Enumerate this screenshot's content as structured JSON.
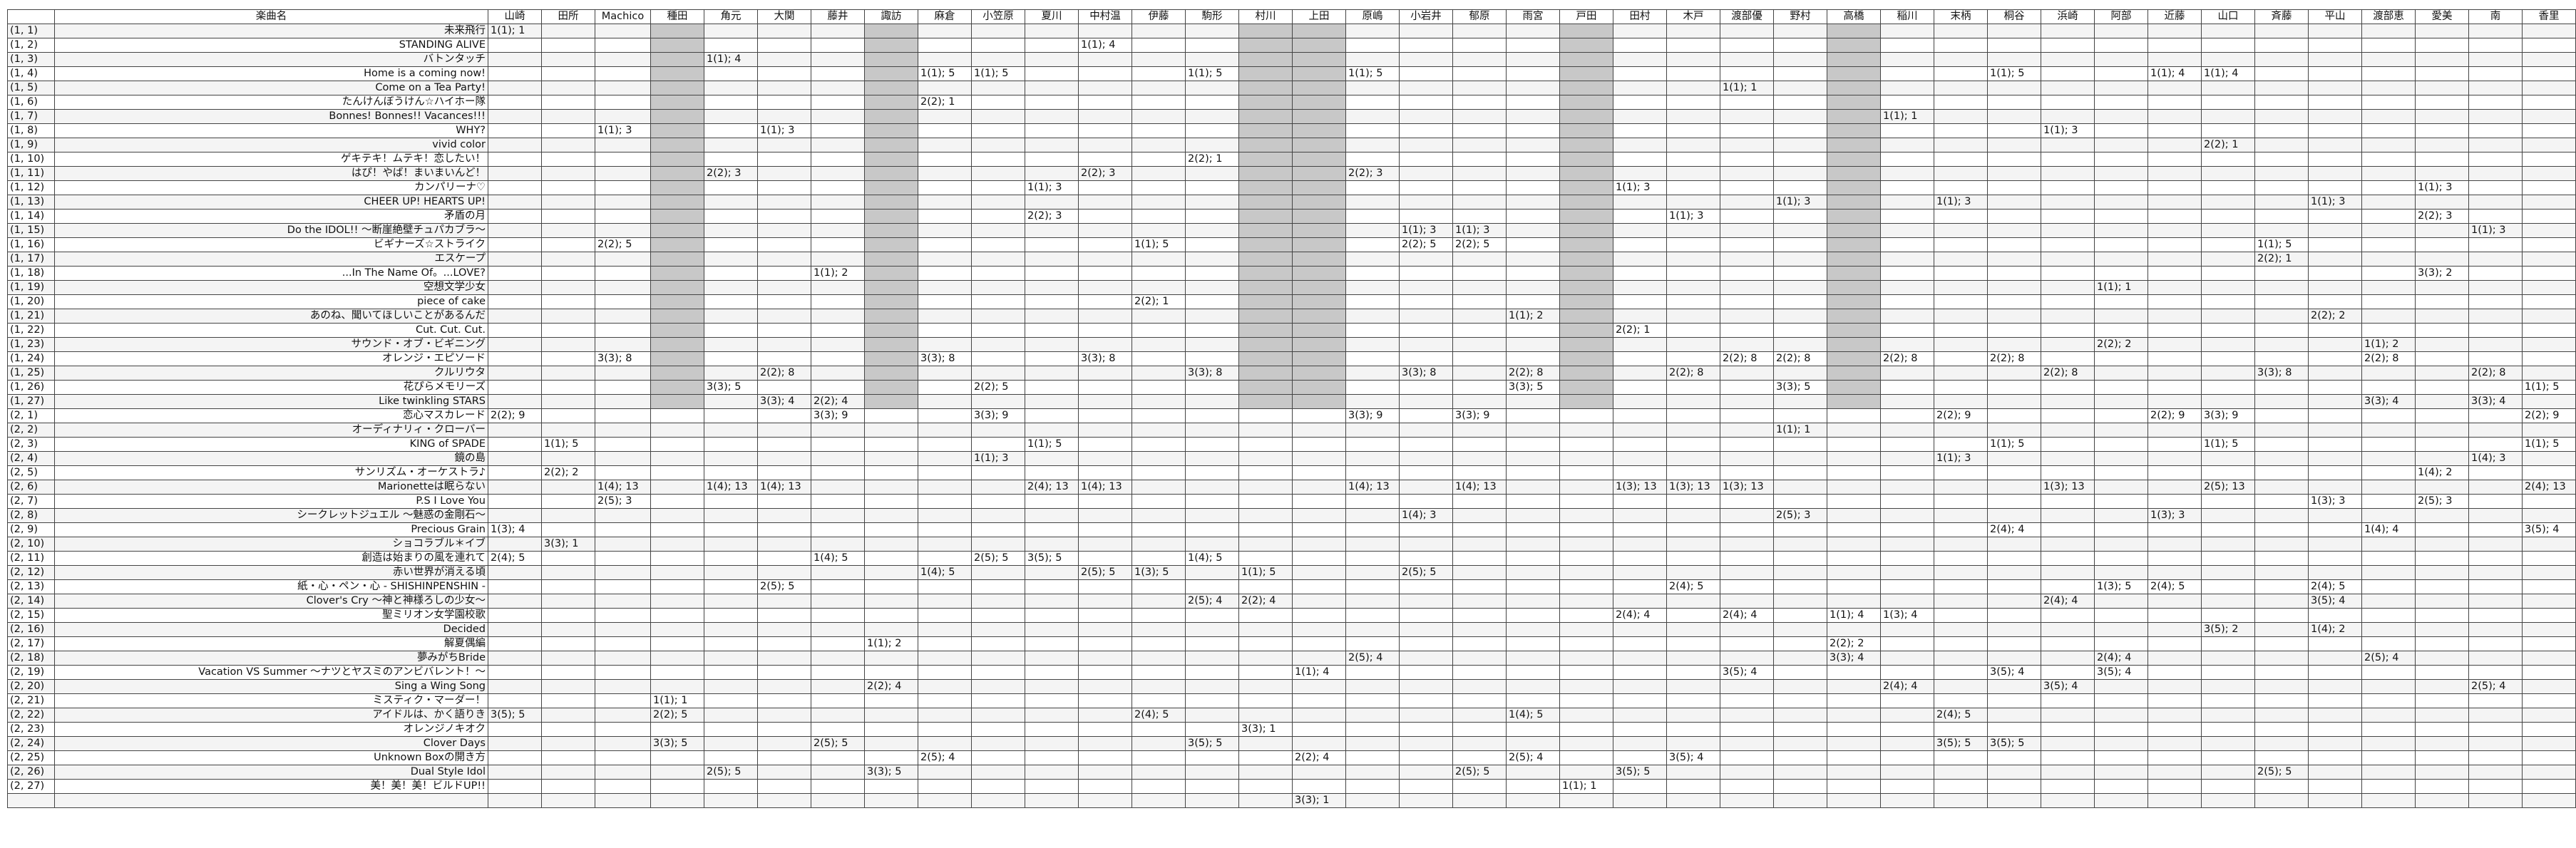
{
  "header": {
    "title_col": "楽曲名",
    "performers": [
      "山崎",
      "田所",
      "Machico",
      "種田",
      "角元",
      "大関",
      "藤井",
      "諏訪",
      "麻倉",
      "小笠原",
      "夏川",
      "中村温",
      "伊藤",
      "駒形",
      "村川",
      "上田",
      "原嶋",
      "小岩井",
      "郁原",
      "雨宮",
      "戸田",
      "田村",
      "木戸",
      "渡部優",
      "野村",
      "高橋",
      "稲川",
      "末柄",
      "桐谷",
      "浜崎",
      "阿部",
      "近藤",
      "山口",
      "斉藤",
      "平山",
      "渡部恵",
      "愛美",
      "南",
      "香里"
    ]
  },
  "shaded_columns": [
    3,
    7,
    14,
    15,
    20,
    25
  ],
  "rows": [
    {
      "key": "(1, 1)",
      "title": "未来飛行",
      "cells": {
        "0": "1(1); 1"
      }
    },
    {
      "key": "(1, 2)",
      "title": "STANDING ALIVE",
      "cells": {
        "11": "1(1); 4"
      }
    },
    {
      "key": "(1, 3)",
      "title": "バトンタッチ",
      "cells": {
        "4": "1(1); 4"
      }
    },
    {
      "key": "(1, 4)",
      "title": "Home is a coming now!",
      "cells": {
        "8": "1(1); 5",
        "9": "1(1); 5",
        "13": "1(1); 5",
        "16": "1(1); 5",
        "28": "1(1); 5",
        "31": "1(1); 4",
        "32": "1(1); 4"
      }
    },
    {
      "key": "(1, 5)",
      "title": "Come on a Tea Party!",
      "cells": {
        "23": "1(1); 1"
      }
    },
    {
      "key": "(1, 6)",
      "title": "たんけんぼうけん☆ハイホー隊",
      "cells": {
        "8": "2(2); 1"
      }
    },
    {
      "key": "(1, 7)",
      "title": "Bonnes! Bonnes!! Vacances!!!",
      "cells": {
        "26": "1(1); 1"
      }
    },
    {
      "key": "(1, 8)",
      "title": "WHY?",
      "cells": {
        "2": "1(1); 3",
        "5": "1(1); 3",
        "29": "1(1); 3"
      }
    },
    {
      "key": "(1, 9)",
      "title": "vivid color",
      "cells": {
        "32": "2(2); 1"
      }
    },
    {
      "key": "(1, 10)",
      "title": "ゲキテキ！ムテキ！恋したい！",
      "cells": {
        "13": "2(2); 1"
      }
    },
    {
      "key": "(1, 11)",
      "title": "はぴ！やば！まいまいんど！",
      "cells": {
        "4": "2(2); 3",
        "11": "2(2); 3",
        "16": "2(2); 3"
      }
    },
    {
      "key": "(1, 12)",
      "title": "カンパリーナ♡",
      "cells": {
        "10": "1(1); 3",
        "21": "1(1); 3",
        "36": "1(1); 3"
      }
    },
    {
      "key": "(1, 13)",
      "title": "CHEER UP! HEARTS UP!",
      "cells": {
        "24": "1(1); 3",
        "27": "1(1); 3",
        "34": "1(1); 3"
      }
    },
    {
      "key": "(1, 14)",
      "title": "矛盾の月",
      "cells": {
        "10": "2(2); 3",
        "22": "1(1); 3",
        "36": "2(2); 3"
      }
    },
    {
      "key": "(1, 15)",
      "title": "Do the IDOL!! ～断崖絶壁チュパカブラ～",
      "cells": {
        "17": "1(1); 3",
        "18": "1(1); 3",
        "37": "1(1); 3"
      }
    },
    {
      "key": "(1, 16)",
      "title": "ビギナーズ☆ストライク",
      "cells": {
        "2": "2(2); 5",
        "12": "1(1); 5",
        "17": "2(2); 5",
        "18": "2(2); 5",
        "33": "1(1); 5"
      }
    },
    {
      "key": "(1, 17)",
      "title": "エスケープ",
      "cells": {
        "33": "2(2); 1"
      }
    },
    {
      "key": "(1, 18)",
      "title": "...In The Name Of。...LOVE?",
      "cells": {
        "6": "1(1); 2",
        "36": "3(3); 2"
      }
    },
    {
      "key": "(1, 19)",
      "title": "空想文学少女",
      "cells": {
        "30": "1(1); 1"
      }
    },
    {
      "key": "(1, 20)",
      "title": "piece of cake",
      "cells": {
        "12": "2(2); 1"
      }
    },
    {
      "key": "(1, 21)",
      "title": "あのね、聞いてほしいことがあるんだ",
      "cells": {
        "19": "1(1); 2",
        "34": "2(2); 2"
      }
    },
    {
      "key": "(1, 22)",
      "title": "Cut. Cut. Cut.",
      "cells": {
        "21": "2(2); 1"
      }
    },
    {
      "key": "(1, 23)",
      "title": "サウンド・オブ・ビギニング",
      "cells": {
        "30": "2(2); 2",
        "35": "1(1); 2"
      }
    },
    {
      "key": "(1, 24)",
      "title": "オレンジ・エピソード",
      "cells": {
        "2": "3(3); 8",
        "8": "3(3); 8",
        "11": "3(3); 8",
        "23": "2(2); 8",
        "24": "2(2); 8",
        "26": "2(2); 8",
        "28": "2(2); 8",
        "35": "2(2); 8"
      }
    },
    {
      "key": "(1, 25)",
      "title": "クルリウタ",
      "cells": {
        "5": "2(2); 8",
        "13": "3(3); 8",
        "17": "3(3); 8",
        "19": "2(2); 8",
        "22": "2(2); 8",
        "29": "2(2); 8",
        "33": "3(3); 8",
        "37": "2(2); 8"
      }
    },
    {
      "key": "(1, 26)",
      "title": "花ぴらメモリーズ",
      "cells": {
        "4": "3(3); 5",
        "9": "2(2); 5",
        "19": "3(3); 5",
        "24": "3(3); 5",
        "38": "1(1); 5"
      }
    },
    {
      "key": "(1, 27)",
      "title": "Like twinkling STARS",
      "cells": {
        "5": "3(3); 4",
        "6": "2(2); 4",
        "35": "3(3); 4",
        "37": "3(3); 4"
      }
    },
    {
      "key": "(2, 1)",
      "title": "恋心マスカレード",
      "cells": {
        "0": "2(2); 9",
        "6": "3(3); 9",
        "9": "3(3); 9",
        "16": "3(3); 9",
        "18": "3(3); 9",
        "27": "2(2); 9",
        "31": "2(2); 9",
        "32": "3(3); 9",
        "38": "2(2); 9"
      }
    },
    {
      "key": "(2, 2)",
      "title": "オーディナリィ・クローバー",
      "cells": {
        "24": "1(1); 1"
      }
    },
    {
      "key": "(2, 3)",
      "title": "KING of SPADE",
      "cells": {
        "1": "1(1); 5",
        "10": "1(1); 5",
        "28": "1(1); 5",
        "32": "1(1); 5",
        "38": "1(1); 5"
      }
    },
    {
      "key": "(2, 4)",
      "title": "鏡の島",
      "cells": {
        "9": "1(1); 3",
        "27": "1(1); 3",
        "37": "1(4); 3"
      }
    },
    {
      "key": "(2, 5)",
      "title": "サンリズム・オーケストラ♪",
      "cells": {
        "1": "2(2); 2",
        "36": "1(4); 2"
      }
    },
    {
      "key": "(2, 6)",
      "title": "Marionetteは眠らない",
      "cells": {
        "2": "1(4); 13",
        "4": "1(4); 13",
        "5": "1(4); 13",
        "10": "2(4); 13",
        "11": "1(4); 13",
        "16": "1(4); 13",
        "18": "1(4); 13",
        "21": "1(3); 13",
        "22": "1(3); 13",
        "23": "1(3); 13",
        "29": "1(3); 13",
        "32": "2(5); 13",
        "38": "2(4); 13"
      }
    },
    {
      "key": "(2, 7)",
      "title": "P.S I Love You",
      "cells": {
        "2": "2(5); 3",
        "34": "1(3); 3",
        "36": "2(5); 3"
      }
    },
    {
      "key": "(2, 8)",
      "title": "シークレットジュエル ～魅惑の金剛石～",
      "cells": {
        "17": "1(4); 3",
        "24": "2(5); 3",
        "31": "1(3); 3"
      }
    },
    {
      "key": "(2, 9)",
      "title": "Precious Grain",
      "cells": {
        "0": "1(3); 4",
        "28": "2(4); 4",
        "35": "1(4); 4",
        "38": "3(5); 4"
      }
    },
    {
      "key": "(2, 10)",
      "title": "ショコラブル＊イブ",
      "cells": {
        "1": "3(3); 1"
      }
    },
    {
      "key": "(2, 11)",
      "title": "創造は始まりの風を連れて",
      "cells": {
        "0": "2(4); 5",
        "6": "1(4); 5",
        "9": "2(5); 5",
        "10": "3(5); 5",
        "13": "1(4); 5"
      }
    },
    {
      "key": "(2, 12)",
      "title": "赤い世界が消える頃",
      "cells": {
        "8": "1(4); 5",
        "11": "2(5); 5",
        "12": "1(3); 5",
        "14": "1(1); 5",
        "17": "2(5); 5"
      }
    },
    {
      "key": "(2, 13)",
      "title": "紙・心・ペン・心 - SHISHINPENSHIN -",
      "cells": {
        "5": "2(5); 5",
        "22": "2(4); 5",
        "30": "1(3); 5",
        "31": "2(4); 5",
        "34": "2(4); 5"
      }
    },
    {
      "key": "(2, 14)",
      "title": "Clover's Cry ～神と神様ろしの少女～",
      "cells": {
        "13": "2(5); 4",
        "14": "2(2); 4",
        "29": "2(4); 4",
        "34": "3(5); 4"
      }
    },
    {
      "key": "(2, 15)",
      "title": "聖ミリオン女学園校歌",
      "cells": {
        "21": "2(4); 4",
        "23": "2(4); 4",
        "25": "1(1); 4",
        "26": "1(3); 4"
      }
    },
    {
      "key": "(2, 16)",
      "title": "Decided",
      "cells": {
        "32": "3(5); 2",
        "34": "1(4); 2"
      }
    },
    {
      "key": "(2, 17)",
      "title": "解夏偶編",
      "cells": {
        "7": "1(1); 2",
        "25": "2(2); 2"
      }
    },
    {
      "key": "(2, 18)",
      "title": "夢みがちBride",
      "cells": {
        "16": "2(5); 4",
        "25": "3(3); 4",
        "30": "2(4); 4",
        "35": "2(5); 4"
      }
    },
    {
      "key": "(2, 19)",
      "title": "Vacation VS Summer ～ナツとヤスミのアンビバレント！～",
      "cells": {
        "15": "1(1); 4",
        "23": "3(5); 4",
        "28": "3(5); 4",
        "30": "3(5); 4"
      }
    },
    {
      "key": "(2, 20)",
      "title": "Sing a Wing Song",
      "cells": {
        "7": "2(2); 4",
        "26": "2(4); 4",
        "29": "3(5); 4",
        "37": "2(5); 4"
      }
    },
    {
      "key": "(2, 21)",
      "title": "ミスティク・マーダー！",
      "cells": {
        "3": "1(1); 1"
      }
    },
    {
      "key": "(2, 22)",
      "title": "アイドルは、かく語りき",
      "cells": {
        "0": "3(5); 5",
        "3": "2(2); 5",
        "12": "2(4); 5",
        "19": "1(4); 5",
        "27": "2(4); 5"
      }
    },
    {
      "key": "(2, 23)",
      "title": "オレンジノキオク",
      "cells": {
        "14": "3(3); 1"
      }
    },
    {
      "key": "(2, 24)",
      "title": "Clover Days",
      "cells": {
        "3": "3(3); 5",
        "6": "2(5); 5",
        "13": "3(5); 5",
        "27": "3(5); 5",
        "28": "3(5); 5"
      }
    },
    {
      "key": "(2, 25)",
      "title": "Unknown Boxの開き方",
      "cells": {
        "8": "2(5); 4",
        "15": "2(2); 4",
        "19": "2(5); 4",
        "22": "3(5); 4"
      }
    },
    {
      "key": "(2, 26)",
      "title": "Dual Style Idol",
      "cells": {
        "4": "2(5); 5",
        "7": "3(3); 5",
        "18": "2(5); 5",
        "21": "3(5); 5",
        "33": "2(5); 5"
      }
    },
    {
      "key": "(2, 27)",
      "title": "美！美！美！ビルドUP!!",
      "cells": {
        "20": "1(1); 1"
      }
    },
    {
      "key": "",
      "title": "",
      "cells": {
        "15": "3(3); 1"
      }
    }
  ]
}
